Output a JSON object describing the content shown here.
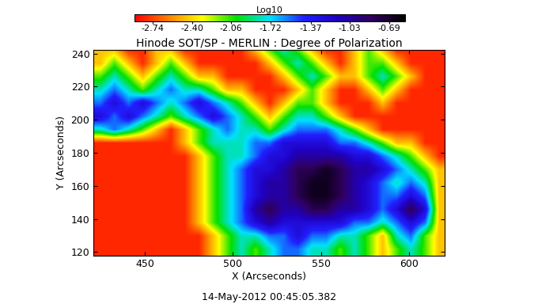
{
  "chart_data": {
    "type": "heatmap",
    "title": "Hinode SOT/SP - MERLIN : Degree of Polarization",
    "x_label": "X (Arcseconds)",
    "y_label": "Y (Arcseconds)",
    "annotation": "14-May-2012 00:45:05.382",
    "colorbar_label": "Log10",
    "colorbar_range": [
      -2.9,
      -0.55
    ],
    "colorbar_ticks": [
      -2.74,
      {
        "value": -2.4,
        "label": "-2.40"
      },
      -2.06,
      -1.72,
      -1.37,
      -1.03,
      -0.69
    ],
    "xlim": [
      421,
      620
    ],
    "ylim": [
      118,
      242
    ],
    "xticks": [
      450,
      500,
      550,
      600
    ],
    "yticks": [
      120,
      140,
      160,
      180,
      200,
      220,
      240
    ],
    "x": [
      425,
      433,
      441,
      449,
      457,
      465,
      473,
      481,
      489,
      497,
      505,
      513,
      521,
      529,
      537,
      545,
      553,
      561,
      569,
      577,
      585,
      593,
      601,
      609,
      617
    ],
    "y": [
      122,
      130,
      138,
      146,
      154,
      162,
      170,
      178,
      186,
      194,
      202,
      210,
      218,
      226,
      234,
      242
    ],
    "cells": [
      [
        -2.8,
        -2.8,
        -2.8,
        -2.8,
        -2.8,
        -2.8,
        -2.8,
        -2.8,
        -2.45,
        -2.1,
        -1.8,
        -2.1,
        -1.8,
        -1.55,
        -1.55,
        -1.8,
        -1.8,
        -2.1,
        -1.8,
        -2.1,
        -2.45,
        -2.1,
        -1.8,
        -2.1,
        -2.45
      ],
      [
        -2.8,
        -2.8,
        -2.8,
        -2.8,
        -2.8,
        -2.8,
        -2.8,
        -2.8,
        -2.45,
        -2.1,
        -1.8,
        -1.8,
        -1.55,
        -1.55,
        -1.25,
        -1.55,
        -1.55,
        -1.8,
        -1.8,
        -2.1,
        -2.45,
        -1.8,
        -1.55,
        -2.1,
        -2.45
      ],
      [
        -2.8,
        -2.8,
        -2.8,
        -2.8,
        -2.8,
        -2.8,
        -2.8,
        -2.45,
        -2.1,
        -1.8,
        -1.55,
        -1.25,
        -1.05,
        -1.25,
        -1.25,
        -1.25,
        -1.25,
        -1.25,
        -1.55,
        -1.55,
        -1.8,
        -1.55,
        -1.25,
        -1.55,
        -2.45
      ],
      [
        -2.8,
        -2.8,
        -2.8,
        -2.8,
        -2.8,
        -2.8,
        -2.8,
        -2.45,
        -2.1,
        -1.8,
        -1.55,
        -1.05,
        -0.8,
        -1.05,
        -1.05,
        -0.8,
        -0.8,
        -1.05,
        -1.05,
        -1.25,
        -1.55,
        -1.25,
        -0.8,
        -1.25,
        -2.45
      ],
      [
        -2.8,
        -2.8,
        -2.8,
        -2.8,
        -2.8,
        -2.8,
        -2.8,
        -2.45,
        -2.1,
        -1.8,
        -1.55,
        -1.25,
        -1.05,
        -1.05,
        -0.8,
        -0.65,
        -0.65,
        -0.8,
        -1.05,
        -1.25,
        -1.55,
        -1.55,
        -1.25,
        -1.55,
        -2.45
      ],
      [
        -2.8,
        -2.8,
        -2.8,
        -2.8,
        -2.8,
        -2.8,
        -2.8,
        -2.45,
        -2.1,
        -1.8,
        -1.55,
        -1.25,
        -1.05,
        -1.05,
        -0.8,
        -0.65,
        -0.65,
        -0.8,
        -1.05,
        -1.25,
        -1.55,
        -1.8,
        -1.55,
        -1.8,
        -2.45
      ],
      [
        -2.8,
        -2.8,
        -2.8,
        -2.8,
        -2.8,
        -2.8,
        -2.8,
        -2.45,
        -2.1,
        -1.8,
        -1.55,
        -1.25,
        -1.25,
        -1.05,
        -0.8,
        -0.8,
        -0.65,
        -0.8,
        -1.05,
        -1.05,
        -1.25,
        -1.55,
        -1.8,
        -2.1,
        -2.45
      ],
      [
        -2.8,
        -2.8,
        -2.8,
        -2.8,
        -2.8,
        -2.8,
        -2.8,
        -2.45,
        -2.1,
        -1.8,
        -1.8,
        -1.55,
        -1.25,
        -1.25,
        -1.05,
        -1.05,
        -1.05,
        -1.05,
        -1.25,
        -1.25,
        -1.55,
        -1.8,
        -2.1,
        -2.45,
        -2.8
      ],
      [
        -2.8,
        -2.8,
        -2.8,
        -2.8,
        -2.8,
        -2.8,
        -2.45,
        -2.1,
        -1.8,
        -1.8,
        -1.8,
        -1.55,
        -1.55,
        -1.25,
        -1.25,
        -1.25,
        -1.25,
        -1.55,
        -1.55,
        -1.8,
        -2.1,
        -2.45,
        -2.45,
        -2.8,
        -2.8
      ],
      [
        -1.8,
        -1.55,
        -1.8,
        -2.1,
        -2.45,
        -2.8,
        -2.45,
        -2.1,
        -1.8,
        -1.55,
        -1.8,
        -1.8,
        -2.1,
        -1.8,
        -1.55,
        -1.55,
        -1.55,
        -1.8,
        -2.1,
        -2.45,
        -2.8,
        -2.8,
        -2.8,
        -2.8,
        -2.8
      ],
      [
        -1.25,
        -1.55,
        -1.25,
        -1.55,
        -1.8,
        -2.1,
        -1.8,
        -1.55,
        -1.25,
        -1.55,
        -1.8,
        -2.1,
        -2.45,
        -2.1,
        -1.8,
        -1.8,
        -2.1,
        -2.45,
        -2.8,
        -2.8,
        -2.8,
        -2.8,
        -2.8,
        -2.8,
        -2.8
      ],
      [
        -1.55,
        -1.25,
        -1.55,
        -1.25,
        -1.55,
        -1.8,
        -1.55,
        -1.25,
        -1.55,
        -1.8,
        -2.1,
        -2.45,
        -2.8,
        -2.45,
        -2.1,
        -2.1,
        -2.45,
        -2.8,
        -2.8,
        -2.8,
        -2.45,
        -2.8,
        -2.8,
        -2.8,
        -2.8
      ],
      [
        -1.8,
        -1.55,
        -1.8,
        -2.1,
        -1.8,
        -1.55,
        -1.8,
        -1.8,
        -2.1,
        -2.45,
        -2.45,
        -2.8,
        -2.8,
        -2.8,
        -2.45,
        -2.1,
        -2.45,
        -2.8,
        -2.8,
        -2.45,
        -2.1,
        -2.45,
        -2.8,
        -2.8,
        -2.8
      ],
      [
        -2.1,
        -1.8,
        -2.1,
        -2.45,
        -2.1,
        -1.8,
        -2.1,
        -2.45,
        -2.45,
        -2.8,
        -2.8,
        -2.8,
        -2.8,
        -2.45,
        -2.1,
        -1.8,
        -2.1,
        -2.45,
        -2.45,
        -2.1,
        -1.8,
        -2.1,
        -2.45,
        -2.8,
        -2.8
      ],
      [
        -2.45,
        -2.1,
        -2.45,
        -2.8,
        -2.45,
        -2.1,
        -2.45,
        -2.8,
        -2.8,
        -2.8,
        -2.8,
        -2.8,
        -2.45,
        -2.1,
        -1.8,
        -2.1,
        -2.45,
        -2.8,
        -2.45,
        -2.1,
        -2.1,
        -2.45,
        -2.8,
        -2.8,
        -2.8
      ],
      [
        -2.45,
        -2.45,
        -2.8,
        -2.8,
        -2.45,
        -2.45,
        -2.8,
        -2.8,
        -2.8,
        -2.8,
        -2.8,
        -2.45,
        -2.1,
        -1.8,
        -2.1,
        -2.45,
        -2.8,
        -2.8,
        -2.45,
        -2.1,
        -2.45,
        -2.8,
        -2.8,
        -2.8,
        -2.8
      ]
    ]
  }
}
